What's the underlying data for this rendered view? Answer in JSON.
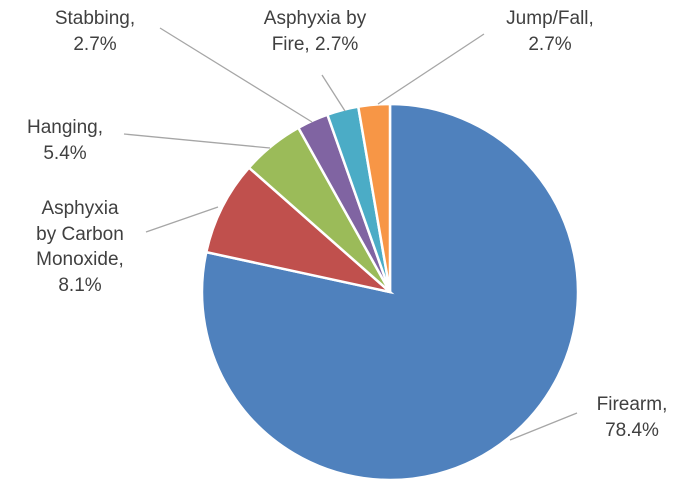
{
  "chart_data": {
    "type": "pie",
    "categories": [
      "Firearm,",
      "Asphyxia by Carbon Monoxide,",
      "Hanging,",
      "Stabbing,",
      "Asphyxia by Fire,",
      "Jump/Fall,"
    ],
    "values": [
      78.4,
      8.1,
      5.4,
      2.7,
      2.7,
      2.7
    ],
    "value_labels": [
      "78.4%",
      "8.1%",
      "5.4%",
      "2.7%",
      "2.7%",
      "2.7%"
    ],
    "colors": [
      "#4f81bd",
      "#c0504d",
      "#9bbb59",
      "#8064a2",
      "#4bacc6",
      "#f79646"
    ]
  }
}
